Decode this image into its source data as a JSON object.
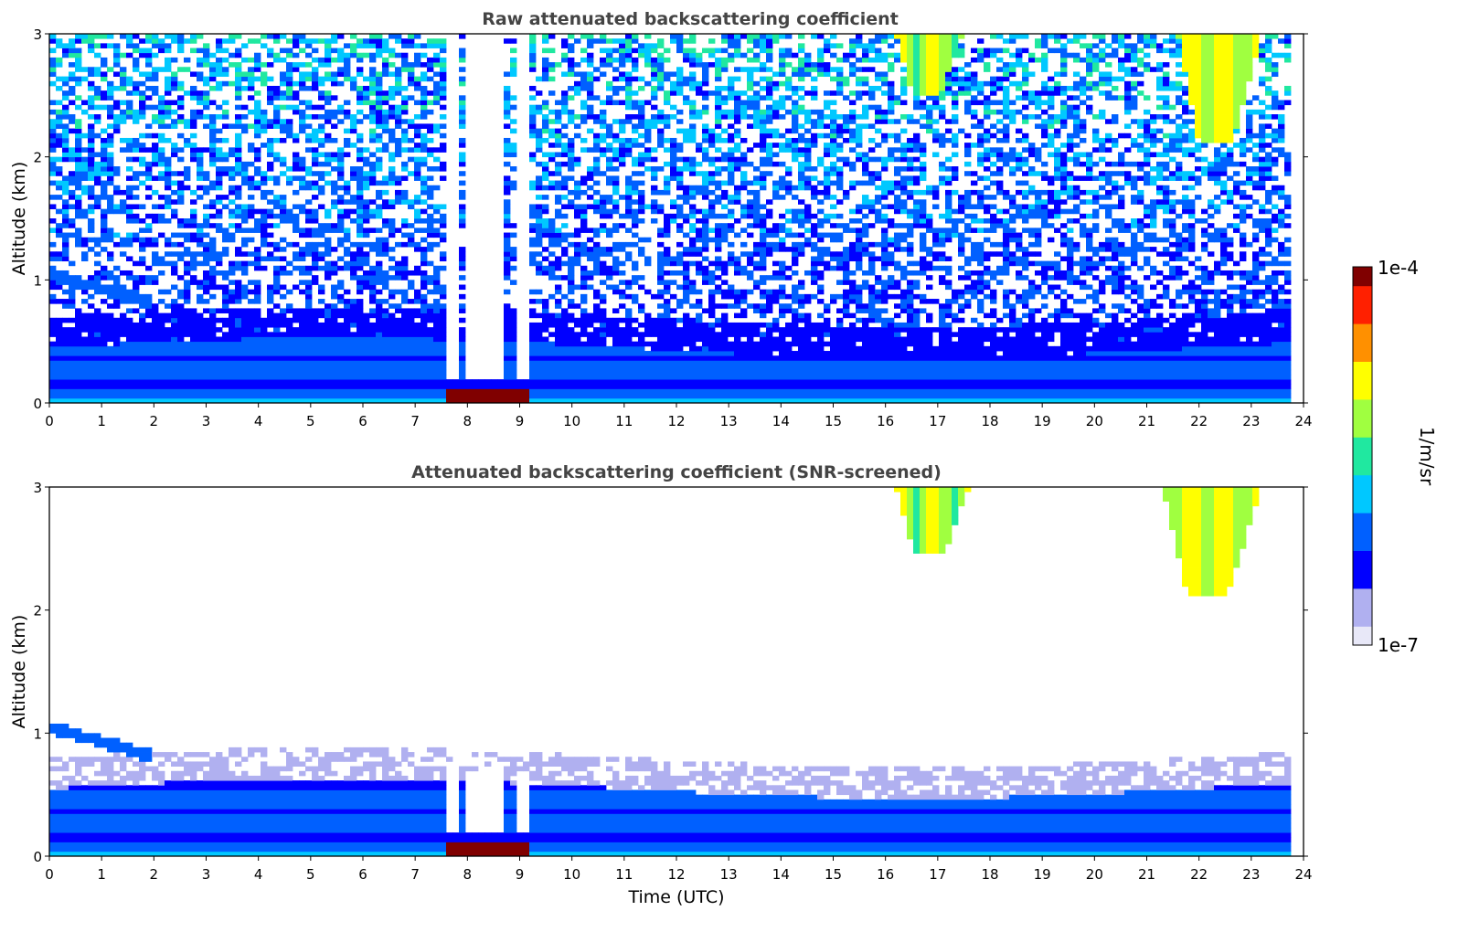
{
  "chart_data": [
    {
      "type": "heatmap",
      "title": "Raw attenuated backscattering coefficient",
      "xlabel": "",
      "ylabel": "Altitude (km)",
      "xlim": [
        0,
        24
      ],
      "ylim": [
        0,
        3
      ],
      "x_ticks": [
        "0",
        "1",
        "2",
        "3",
        "4",
        "5",
        "6",
        "7",
        "8",
        "9",
        "10",
        "11",
        "12",
        "13",
        "14",
        "15",
        "16",
        "17",
        "18",
        "19",
        "20",
        "21",
        "22",
        "23",
        "24"
      ],
      "y_ticks": [
        "0",
        "1",
        "2",
        "3"
      ],
      "data_end_hour": 23.8,
      "features": [
        {
          "kind": "boundary_layer",
          "time": [
            0,
            23.8
          ],
          "top_km": 0.45,
          "log_level": 0.28
        },
        {
          "kind": "residual_layer",
          "time": [
            0,
            2
          ],
          "altitude_km": 1.05,
          "log_level": 0.15
        },
        {
          "kind": "fog_attenuation_gap",
          "time": [
            7.6,
            9.3
          ],
          "altitude_km": [
            0.2,
            3
          ],
          "log_level": 0
        },
        {
          "kind": "fog_surface_echo",
          "time": [
            7.6,
            9.2
          ],
          "altitude_km": [
            0,
            0.1
          ],
          "log_level": 0.95
        },
        {
          "kind": "cirrus_fallstreak",
          "time": [
            16.2,
            17.5
          ],
          "altitude_km": [
            2.5,
            3
          ],
          "log_level": 0.62
        },
        {
          "kind": "cirrus_fallstreak",
          "time": [
            21.6,
            23.2
          ],
          "altitude_km": [
            2.1,
            3
          ],
          "log_level": 0.66
        },
        {
          "kind": "noisy_clear_air",
          "time": [
            0,
            23.8
          ],
          "altitude_km": [
            0.5,
            3
          ],
          "log_level": 0.3
        }
      ]
    },
    {
      "type": "heatmap",
      "title": "Attenuated backscattering coefficient (SNR-screened)",
      "xlabel": "Time (UTC)",
      "ylabel": "Altitude (km)",
      "xlim": [
        0,
        24
      ],
      "ylim": [
        0,
        3
      ],
      "x_ticks": [
        "0",
        "1",
        "2",
        "3",
        "4",
        "5",
        "6",
        "7",
        "8",
        "9",
        "10",
        "11",
        "12",
        "13",
        "14",
        "15",
        "16",
        "17",
        "18",
        "19",
        "20",
        "21",
        "22",
        "23",
        "24"
      ],
      "y_ticks": [
        "0",
        "1",
        "2",
        "3"
      ],
      "data_end_hour": 23.8,
      "features": [
        {
          "kind": "boundary_layer",
          "time": [
            0,
            23.8
          ],
          "top_km": 0.55,
          "log_level": 0.28
        },
        {
          "kind": "residual_layer",
          "time": [
            0,
            2
          ],
          "altitude_km": 1.05,
          "log_level": 0.22
        },
        {
          "kind": "fog_notch",
          "time": [
            7.6,
            9.3
          ],
          "altitude_km": [
            0.2,
            0.7
          ],
          "log_level": 0
        },
        {
          "kind": "fog_surface_echo",
          "time": [
            7.6,
            9.2
          ],
          "altitude_km": [
            0,
            0.1
          ],
          "log_level": 0.95
        },
        {
          "kind": "cirrus_fallstreak",
          "time": [
            16.2,
            17.6
          ],
          "altitude_km": [
            2.45,
            3
          ],
          "log_level": 0.62
        },
        {
          "kind": "cirrus_fallstreak",
          "time": [
            21.3,
            23.2
          ],
          "altitude_km": [
            2.1,
            3
          ],
          "log_level": 0.66
        }
      ]
    }
  ],
  "colorbar": {
    "label": "1/m/sr",
    "max_label": "1e-4",
    "min_label": "1e-7",
    "colormap": [
      "#e8e8f8",
      "#b0b0f0",
      "#0000ff",
      "#0060ff",
      "#00c8ff",
      "#20e8a0",
      "#a0ff40",
      "#ffff00",
      "#ff9000",
      "#ff2000",
      "#800000"
    ]
  }
}
